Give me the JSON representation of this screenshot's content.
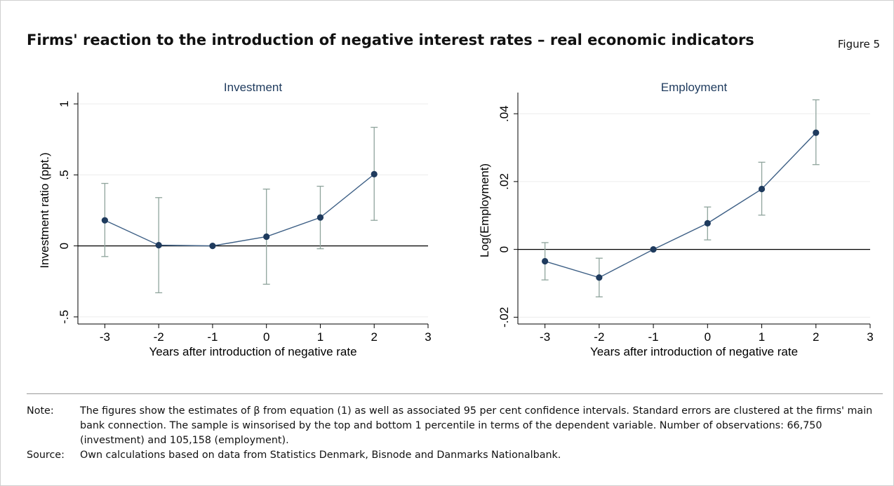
{
  "title": "Firms' reaction to the introduction of negative interest rates – real economic indicators",
  "figure_label": "Figure 5",
  "chart_data": [
    {
      "type": "line",
      "title": "Investment",
      "xlabel": "Years after introduction of negative rate",
      "ylabel": "Investment ratio (ppt.)",
      "xlim": [
        -3.5,
        3
      ],
      "ylim": [
        -0.55,
        1.05
      ],
      "x_ticks": [
        -3,
        -2,
        -1,
        0,
        1,
        2,
        3
      ],
      "x_tick_labels": [
        "-3",
        "-2",
        "-1",
        "0",
        "1",
        "2",
        "3"
      ],
      "y_ticks": [
        -0.5,
        0,
        0.5,
        1
      ],
      "y_tick_labels": [
        "-.5",
        "0",
        ".5",
        "1"
      ],
      "grid": true,
      "zero_line": true,
      "x": [
        -3,
        -2,
        -1,
        0,
        1,
        2
      ],
      "y": [
        0.18,
        0.005,
        0,
        0.065,
        0.2,
        0.505
      ],
      "ci_low": [
        -0.075,
        -0.33,
        0,
        -0.27,
        -0.02,
        0.18
      ],
      "ci_high": [
        0.44,
        0.34,
        0,
        0.4,
        0.42,
        0.835
      ],
      "colors": {
        "line": "#3d5f85",
        "marker": "#1f3b5e",
        "ci": "#8fa49c"
      }
    },
    {
      "type": "line",
      "title": "Employment",
      "xlabel": "Years after introduction of negative rate",
      "ylabel": "Log(Employment)",
      "xlim": [
        -3.5,
        3
      ],
      "ylim": [
        -0.022,
        0.045
      ],
      "x_ticks": [
        -3,
        -2,
        -1,
        0,
        1,
        2,
        3
      ],
      "x_tick_labels": [
        "-3",
        "-2",
        "-1",
        "0",
        "1",
        "2",
        "3"
      ],
      "y_ticks": [
        -0.02,
        0,
        0.02,
        0.04
      ],
      "y_tick_labels": [
        "-.02",
        "0",
        ".02",
        ".04"
      ],
      "grid": true,
      "zero_line": true,
      "x": [
        -3,
        -2,
        -1,
        0,
        1,
        2
      ],
      "y": [
        -0.0035,
        -0.0083,
        0,
        0.0077,
        0.0178,
        0.0344
      ],
      "ci_low": [
        -0.009,
        -0.014,
        0,
        0.0028,
        0.0101,
        0.025
      ],
      "ci_high": [
        0.002,
        -0.0026,
        0,
        0.0125,
        0.0257,
        0.0441
      ],
      "colors": {
        "line": "#3d5f85",
        "marker": "#1f3b5e",
        "ci": "#8fa49c"
      }
    }
  ],
  "notes": [
    {
      "key": "Note:",
      "text": "The figures show the estimates of β from equation (1) as well as associated 95 per cent confidence intervals. Standard errors are clustered at the firms' main bank connection. The sample is winsorised by the top and bottom 1 percentile in terms of the dependent variable. Number of observations: 66,750 (investment) and 105,158 (employment)."
    },
    {
      "key": "Source:",
      "text": "Own calculations based on data from Statistics Denmark, Bisnode and Danmarks Nationalbank."
    }
  ]
}
